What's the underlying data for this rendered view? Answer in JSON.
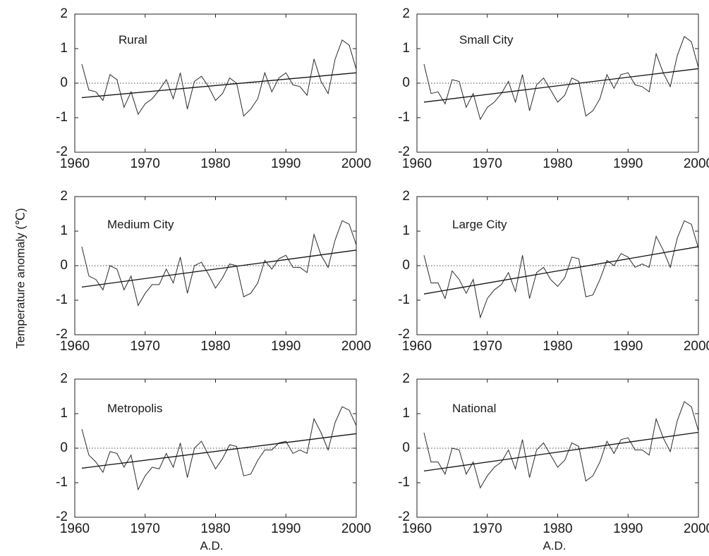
{
  "figure": {
    "ylabel": "Temperature anomaly (℃)",
    "xlabel": "A.D."
  },
  "chart_data": [
    {
      "type": "line",
      "title": "Rural",
      "xlim": [
        1960,
        2000
      ],
      "ylim": [
        -2,
        2
      ],
      "xticks": [
        1960,
        1970,
        1980,
        1990,
        2000
      ],
      "yticks": [
        -2,
        -1,
        0,
        1,
        2
      ],
      "x": [
        1961,
        1962,
        1963,
        1964,
        1965,
        1966,
        1967,
        1968,
        1969,
        1970,
        1971,
        1972,
        1973,
        1974,
        1975,
        1976,
        1977,
        1978,
        1979,
        1980,
        1981,
        1982,
        1983,
        1984,
        1985,
        1986,
        1987,
        1988,
        1989,
        1990,
        1991,
        1992,
        1993,
        1994,
        1995,
        1996,
        1997,
        1998,
        1999,
        2000
      ],
      "values": [
        0.55,
        -0.2,
        -0.25,
        -0.5,
        0.25,
        0.1,
        -0.7,
        -0.25,
        -0.9,
        -0.6,
        -0.45,
        -0.2,
        0.1,
        -0.45,
        0.3,
        -0.75,
        0.05,
        0.2,
        -0.1,
        -0.5,
        -0.3,
        0.15,
        0.0,
        -0.95,
        -0.75,
        -0.45,
        0.3,
        -0.25,
        0.15,
        0.3,
        -0.05,
        -0.1,
        -0.35,
        0.7,
        0.05,
        -0.3,
        0.7,
        1.25,
        1.1,
        0.4
      ],
      "trend": {
        "x": [
          1961,
          2000
        ],
        "y": [
          -0.42,
          0.3
        ]
      }
    },
    {
      "type": "line",
      "title": "Small City",
      "xlim": [
        1960,
        2000
      ],
      "ylim": [
        -2,
        2
      ],
      "xticks": [
        1960,
        1970,
        1980,
        1990,
        2000
      ],
      "yticks": [
        -2,
        -1,
        0,
        1,
        2
      ],
      "x": [
        1961,
        1962,
        1963,
        1964,
        1965,
        1966,
        1967,
        1968,
        1969,
        1970,
        1971,
        1972,
        1973,
        1974,
        1975,
        1976,
        1977,
        1978,
        1979,
        1980,
        1981,
        1982,
        1983,
        1984,
        1985,
        1986,
        1987,
        1988,
        1989,
        1990,
        1991,
        1992,
        1993,
        1994,
        1995,
        1996,
        1997,
        1998,
        1999,
        2000
      ],
      "values": [
        0.55,
        -0.3,
        -0.25,
        -0.6,
        0.1,
        0.05,
        -0.7,
        -0.3,
        -1.05,
        -0.7,
        -0.55,
        -0.3,
        0.05,
        -0.55,
        0.25,
        -0.8,
        -0.05,
        0.15,
        -0.2,
        -0.55,
        -0.35,
        0.15,
        0.05,
        -0.95,
        -0.8,
        -0.45,
        0.25,
        -0.15,
        0.25,
        0.3,
        -0.05,
        -0.1,
        -0.25,
        0.85,
        0.3,
        -0.1,
        0.8,
        1.35,
        1.2,
        0.45
      ],
      "trend": {
        "x": [
          1961,
          2000
        ],
        "y": [
          -0.55,
          0.42
        ]
      }
    },
    {
      "type": "line",
      "title": "Medium City",
      "xlim": [
        1960,
        2000
      ],
      "ylim": [
        -2,
        2
      ],
      "xticks": [
        1960,
        1970,
        1980,
        1990,
        2000
      ],
      "yticks": [
        -2,
        -1,
        0,
        1,
        2
      ],
      "x": [
        1961,
        1962,
        1963,
        1964,
        1965,
        1966,
        1967,
        1968,
        1969,
        1970,
        1971,
        1972,
        1973,
        1974,
        1975,
        1976,
        1977,
        1978,
        1979,
        1980,
        1981,
        1982,
        1983,
        1984,
        1985,
        1986,
        1987,
        1988,
        1989,
        1990,
        1991,
        1992,
        1993,
        1994,
        1995,
        1996,
        1997,
        1998,
        1999,
        2000
      ],
      "values": [
        0.55,
        -0.3,
        -0.4,
        -0.7,
        0.0,
        -0.1,
        -0.7,
        -0.3,
        -1.15,
        -0.8,
        -0.55,
        -0.55,
        -0.1,
        -0.5,
        0.25,
        -0.8,
        0.0,
        0.1,
        -0.25,
        -0.65,
        -0.35,
        0.05,
        0.0,
        -0.9,
        -0.8,
        -0.5,
        0.15,
        -0.1,
        0.2,
        0.3,
        -0.05,
        -0.05,
        -0.2,
        0.9,
        0.3,
        -0.05,
        0.75,
        1.3,
        1.2,
        0.6
      ],
      "trend": {
        "x": [
          1961,
          2000
        ],
        "y": [
          -0.62,
          0.45
        ]
      }
    },
    {
      "type": "line",
      "title": "Large City",
      "xlim": [
        1960,
        2000
      ],
      "ylim": [
        -2,
        2
      ],
      "xticks": [
        1960,
        1970,
        1980,
        1990,
        2000
      ],
      "yticks": [
        -2,
        -1,
        0,
        1,
        2
      ],
      "x": [
        1961,
        1962,
        1963,
        1964,
        1965,
        1966,
        1967,
        1968,
        1969,
        1970,
        1971,
        1972,
        1973,
        1974,
        1975,
        1976,
        1977,
        1978,
        1979,
        1980,
        1981,
        1982,
        1983,
        1984,
        1985,
        1986,
        1987,
        1988,
        1989,
        1990,
        1991,
        1992,
        1993,
        1994,
        1995,
        1996,
        1997,
        1998,
        1999,
        2000
      ],
      "values": [
        0.3,
        -0.5,
        -0.5,
        -0.95,
        -0.15,
        -0.4,
        -0.8,
        -0.4,
        -1.5,
        -0.95,
        -0.7,
        -0.55,
        -0.2,
        -0.75,
        0.3,
        -0.95,
        -0.2,
        -0.05,
        -0.4,
        -0.6,
        -0.35,
        0.25,
        0.2,
        -0.9,
        -0.85,
        -0.4,
        0.15,
        0.0,
        0.35,
        0.25,
        -0.05,
        0.05,
        -0.05,
        0.85,
        0.45,
        -0.05,
        0.8,
        1.3,
        1.2,
        0.5
      ],
      "trend": {
        "x": [
          1961,
          2000
        ],
        "y": [
          -0.82,
          0.55
        ]
      }
    },
    {
      "type": "line",
      "title": "Metropolis",
      "xlim": [
        1960,
        2000
      ],
      "ylim": [
        -2,
        2
      ],
      "xticks": [
        1960,
        1970,
        1980,
        1990,
        2000
      ],
      "yticks": [
        -2,
        -1,
        0,
        1,
        2
      ],
      "x": [
        1961,
        1962,
        1963,
        1964,
        1965,
        1966,
        1967,
        1968,
        1969,
        1970,
        1971,
        1972,
        1973,
        1974,
        1975,
        1976,
        1977,
        1978,
        1979,
        1980,
        1981,
        1982,
        1983,
        1984,
        1985,
        1986,
        1987,
        1988,
        1989,
        1990,
        1991,
        1992,
        1993,
        1994,
        1995,
        1996,
        1997,
        1998,
        1999,
        2000
      ],
      "values": [
        0.55,
        -0.2,
        -0.4,
        -0.7,
        -0.1,
        -0.15,
        -0.55,
        -0.2,
        -1.2,
        -0.8,
        -0.55,
        -0.6,
        -0.15,
        -0.55,
        0.15,
        -0.85,
        0.0,
        0.2,
        -0.2,
        -0.6,
        -0.3,
        0.1,
        0.05,
        -0.8,
        -0.75,
        -0.35,
        -0.05,
        -0.05,
        0.15,
        0.2,
        -0.15,
        -0.05,
        -0.15,
        0.85,
        0.45,
        -0.05,
        0.75,
        1.2,
        1.1,
        0.65
      ],
      "trend": {
        "x": [
          1961,
          2000
        ],
        "y": [
          -0.58,
          0.42
        ]
      }
    },
    {
      "type": "line",
      "title": "National",
      "xlim": [
        1960,
        2000
      ],
      "ylim": [
        -2,
        2
      ],
      "xticks": [
        1960,
        1970,
        1980,
        1990,
        2000
      ],
      "yticks": [
        -2,
        -1,
        0,
        1,
        2
      ],
      "x": [
        1961,
        1962,
        1963,
        1964,
        1965,
        1966,
        1967,
        1968,
        1969,
        1970,
        1971,
        1972,
        1973,
        1974,
        1975,
        1976,
        1977,
        1978,
        1979,
        1980,
        1981,
        1982,
        1983,
        1984,
        1985,
        1986,
        1987,
        1988,
        1989,
        1990,
        1991,
        1992,
        1993,
        1994,
        1995,
        1996,
        1997,
        1998,
        1999,
        2000
      ],
      "values": [
        0.45,
        -0.4,
        -0.4,
        -0.75,
        0.0,
        -0.05,
        -0.75,
        -0.4,
        -1.15,
        -0.8,
        -0.55,
        -0.4,
        -0.05,
        -0.6,
        0.25,
        -0.85,
        -0.05,
        0.15,
        -0.2,
        -0.55,
        -0.35,
        0.15,
        0.05,
        -0.95,
        -0.8,
        -0.4,
        0.2,
        -0.15,
        0.25,
        0.3,
        -0.05,
        -0.05,
        -0.2,
        0.85,
        0.3,
        -0.1,
        0.8,
        1.35,
        1.2,
        0.5
      ],
      "trend": {
        "x": [
          1961,
          2000
        ],
        "y": [
          -0.66,
          0.46
        ]
      }
    }
  ]
}
